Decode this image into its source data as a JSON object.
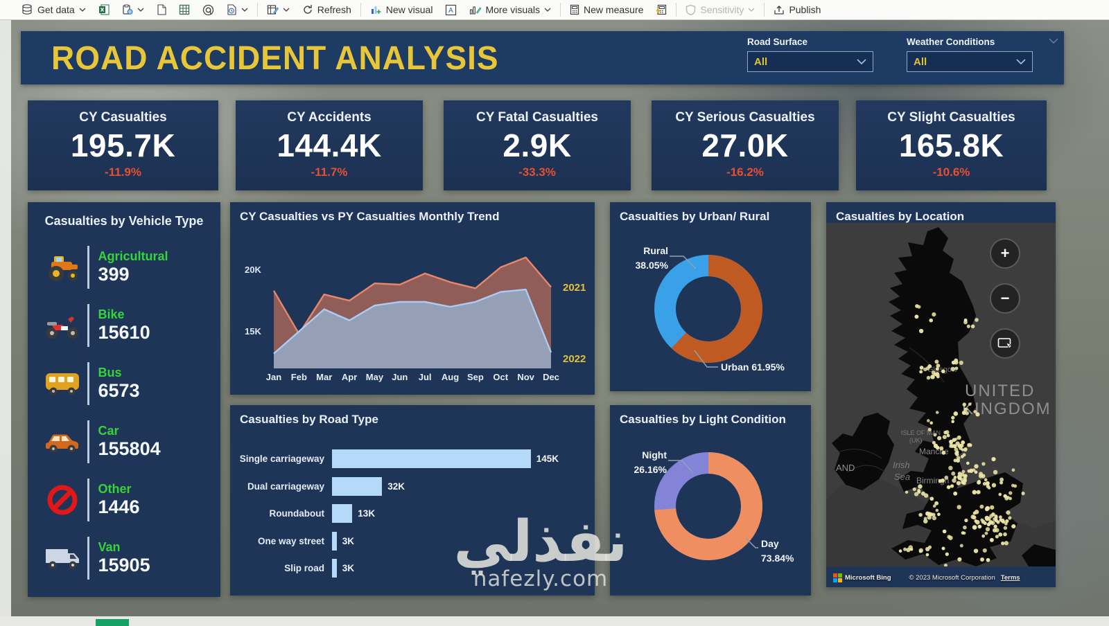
{
  "toolbar": {
    "get_data": "Get data",
    "refresh": "Refresh",
    "new_visual": "New visual",
    "more_visuals": "More visuals",
    "new_measure": "New measure",
    "sensitivity": "Sensitivity",
    "publish": "Publish"
  },
  "header": {
    "title": "ROAD ACCIDENT ANALYSIS",
    "slicers": [
      {
        "label": "Road Surface",
        "value": "All"
      },
      {
        "label": "Weather Conditions",
        "value": "All"
      }
    ]
  },
  "kpi": {
    "cards": [
      {
        "title": "CY Casualties",
        "value": "195.7K",
        "delta": "-11.9%"
      },
      {
        "title": "CY Accidents",
        "value": "144.4K",
        "delta": "-11.7%"
      },
      {
        "title": "CY Fatal Casualties",
        "value": "2.9K",
        "delta": "-33.3%"
      },
      {
        "title": "CY Serious Casualties",
        "value": "27.0K",
        "delta": "-16.2%"
      },
      {
        "title": "CY Slight Casualties",
        "value": "165.8K",
        "delta": "-10.6%"
      }
    ]
  },
  "vehicle_panel": {
    "title": "Casualties by Vehicle Type",
    "items": [
      {
        "label": "Agricultural",
        "value": "399",
        "icon": "tractor-icon"
      },
      {
        "label": "Bike",
        "value": "15610",
        "icon": "motorcycle-icon"
      },
      {
        "label": "Bus",
        "value": "6573",
        "icon": "bus-icon"
      },
      {
        "label": "Car",
        "value": "155804",
        "icon": "car-icon"
      },
      {
        "label": "Other",
        "value": "1446",
        "icon": "no-entry-icon"
      },
      {
        "label": "Van",
        "value": "15905",
        "icon": "van-icon"
      }
    ]
  },
  "chart_data": [
    {
      "id": "monthly_trend",
      "type": "area",
      "title": "CY Casualties vs PY Casualties Monthly Trend",
      "x": [
        "Jan",
        "Feb",
        "Mar",
        "Apr",
        "May",
        "Jun",
        "Jul",
        "Aug",
        "Sep",
        "Oct",
        "Nov",
        "Dec"
      ],
      "ylim": [
        12,
        22
      ],
      "unit": "K",
      "y_ticks": [
        "20K",
        "15K"
      ],
      "grid": false,
      "legend_position": "right-edge-labels",
      "series": [
        {
          "name": "2021",
          "color": "#e8876a",
          "fill": "rgba(214,118,88,0.62)",
          "values": [
            18.3,
            14.8,
            18.0,
            17.5,
            18.9,
            18.8,
            19.7,
            19.0,
            18.5,
            20.2,
            21.0,
            18.6
          ]
        },
        {
          "name": "2022",
          "color": "#a9cdf4",
          "fill": "rgba(150,163,188,0.95)",
          "values": [
            13.2,
            15.0,
            16.8,
            15.9,
            17.1,
            17.4,
            17.4,
            17.0,
            17.4,
            18.2,
            18.4,
            13.3
          ]
        }
      ]
    },
    {
      "id": "urban_rural",
      "type": "donut",
      "title": "Casualties by Urban/ Rural",
      "slices": [
        {
          "label": "Urban",
          "pct": 61.95,
          "color": "#bf5b22"
        },
        {
          "label": "Rural",
          "pct": 38.05,
          "color": "#3aa0e8"
        }
      ],
      "callouts": {
        "left_line1": "Rural",
        "left_line2": "38.05%",
        "right_line1": "Urban 61.95%"
      }
    },
    {
      "id": "road_type",
      "type": "bar",
      "title": "Casualties by Road Type",
      "categories": [
        "Single carriageway",
        "Dual carriageway",
        "Roundabout",
        "One way street",
        "Slip road"
      ],
      "values": [
        145,
        32,
        13,
        3,
        3
      ],
      "value_labels": [
        "145K",
        "32K",
        "13K",
        "3K",
        "3K"
      ],
      "xmax": 145,
      "bar_color": "#b5d9f8"
    },
    {
      "id": "light_condition",
      "type": "donut",
      "title": "Casualties by Light Condition",
      "slices": [
        {
          "label": "Day",
          "pct": 73.84,
          "color": "#ef8e60"
        },
        {
          "label": "Night",
          "pct": 26.16,
          "color": "#8384d8"
        }
      ],
      "callouts": {
        "left_line1": "Night",
        "left_line2": "26.16%",
        "right_line1": "Day",
        "right_line2": "73.84%"
      }
    }
  ],
  "map": {
    "title": "Casualties by Location",
    "description": "Bing map of the United Kingdom with yellow dots marking accident locations, densest over England (Manchester, Birmingham, London).",
    "labels": [
      "Glasgow",
      "UNITED",
      "KINGDOM",
      "ISLE OF MAN",
      "(UK)",
      "Manche",
      "Irish",
      "Sea",
      "Birmingh",
      "AND"
    ],
    "attribution": {
      "bing": "Microsoft Bing",
      "copyright": "© 2023 Microsoft Corporation",
      "terms": "Terms"
    }
  },
  "watermark": {
    "arabic": "نفذلي",
    "domain": "nafezly.com"
  },
  "colors": {
    "accent_yellow": "#e7c63a",
    "delta_red": "#e75030",
    "label_green": "#35d43a",
    "panel_navy": "#1f3557",
    "bar_blue": "#b5d9f8",
    "rural_blue": "#3aa0e8",
    "urban_rust": "#bf5b22",
    "night_purple": "#8384d8",
    "day_salmon": "#ef8e60",
    "map_dot": "#ece5a6"
  }
}
